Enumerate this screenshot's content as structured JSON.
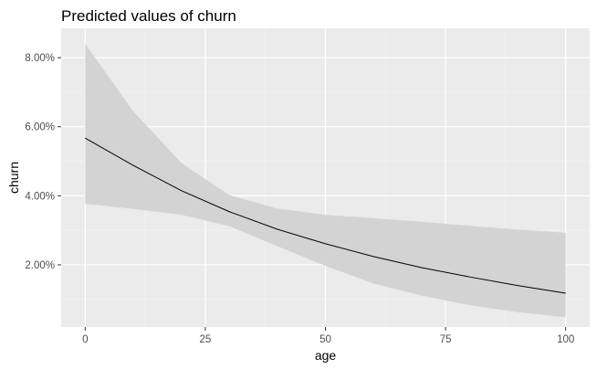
{
  "chart_data": {
    "type": "line",
    "title": "Predicted values of churn",
    "xlabel": "age",
    "ylabel": "churn",
    "xlim": [
      -5,
      105
    ],
    "ylim": [
      0.002,
      0.0885
    ],
    "x_ticks": [
      0,
      25,
      50,
      75,
      100
    ],
    "x_tick_labels": [
      "0",
      "25",
      "50",
      "75",
      "100"
    ],
    "y_ticks": [
      0.02,
      0.04,
      0.06,
      0.08
    ],
    "y_tick_labels": [
      "2.00%",
      "4.00%",
      "6.00%",
      "8.00%"
    ],
    "grid": true,
    "legend": "none",
    "series": [
      {
        "x": [
          0,
          10,
          20,
          30,
          40,
          50,
          60,
          70,
          80,
          90,
          100
        ],
        "y": [
          0.0567,
          0.0488,
          0.0415,
          0.0354,
          0.0303,
          0.0261,
          0.0224,
          0.0192,
          0.0165,
          0.014,
          0.0118
        ],
        "ci_lower": [
          0.0377,
          0.0362,
          0.0345,
          0.0312,
          0.0254,
          0.0197,
          0.0146,
          0.0111,
          0.0083,
          0.0063,
          0.0048
        ],
        "ci_upper": [
          0.084,
          0.0645,
          0.0495,
          0.0402,
          0.0363,
          0.0345,
          0.0335,
          0.0325,
          0.0313,
          0.0302,
          0.0293
        ]
      }
    ],
    "colors": {
      "panel_background": "#ebebeb",
      "grid_major": "#ffffff",
      "grid_minor": "#f5f5f5",
      "ribbon": "#d3d3d3",
      "line": "#000000",
      "tick_label": "#4d4d4d"
    }
  }
}
